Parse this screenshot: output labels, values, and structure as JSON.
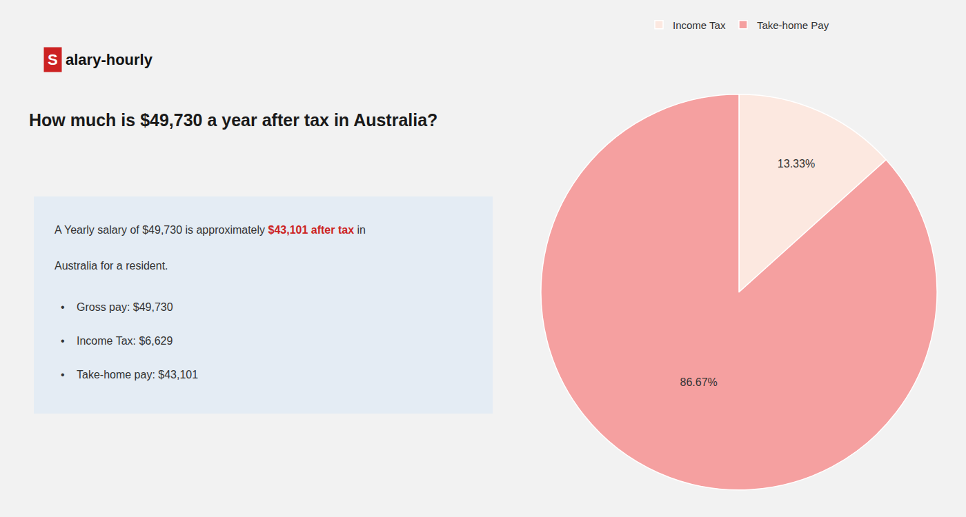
{
  "chart_data": {
    "type": "pie",
    "title": "How much is $49,730 a year after tax in Australia?",
    "categories": [
      "Income Tax",
      "Take-home Pay"
    ],
    "values": [
      13.33,
      86.67
    ],
    "value_labels": [
      "13.33%",
      "86.67%"
    ],
    "colors": [
      "#fce8e0",
      "#f5a0a0"
    ],
    "data_labels": true,
    "legend": "top",
    "annotations": [
      [
        {
          "text": "S",
          "color": "#cc2222"
        },
        {
          "text": "alary-hourly"
        }
      ],
      [
        {
          "text": "A Yearly salary of $49,730 is approximately "
        },
        {
          "text": "$43,101 after tax",
          "color": "#cc2222"
        },
        {
          "text": " in"
        }
      ],
      [
        {
          "text": "Australia for a resident."
        }
      ],
      [
        {
          "text": "•"
        },
        {
          "text": "Gross pay: $49,730"
        }
      ],
      [
        {
          "text": "•"
        },
        {
          "text": "Income Tax: $6,629"
        }
      ],
      [
        {
          "text": "•"
        },
        {
          "text": "Take-home pay: $43,101"
        }
      ]
    ]
  }
}
